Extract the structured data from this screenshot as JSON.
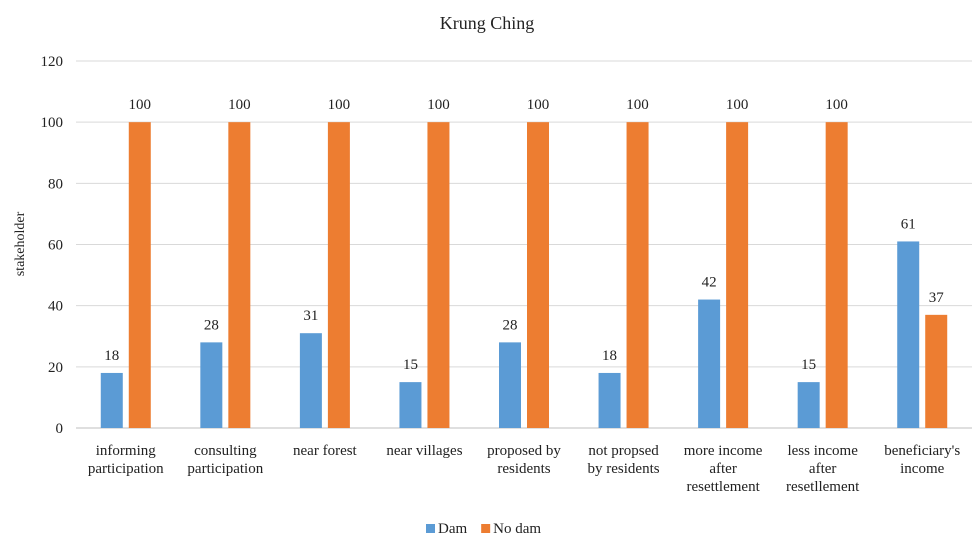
{
  "chart_data": {
    "type": "bar",
    "title": "Krung Ching",
    "xlabel": "",
    "ylabel": "stakeholder",
    "ylim": [
      0,
      120
    ],
    "yticks": [
      0,
      20,
      40,
      60,
      80,
      100,
      120
    ],
    "grid": true,
    "legend_position": "bottom",
    "categories": [
      [
        "informing",
        "participation"
      ],
      [
        "consulting",
        "participation"
      ],
      [
        "near forest"
      ],
      [
        "near villages"
      ],
      [
        "proposed by",
        "residents"
      ],
      [
        "not propsed",
        "by residents"
      ],
      [
        "more income",
        "after",
        "resettlement"
      ],
      [
        "less income",
        "after",
        "resetllement"
      ],
      [
        "beneficiary's",
        "income"
      ]
    ],
    "series": [
      {
        "name": "Dam",
        "color": "#5B9BD5",
        "values": [
          18,
          28,
          31,
          15,
          28,
          18,
          42,
          15,
          61
        ]
      },
      {
        "name": "No dam",
        "color": "#ED7D31",
        "values": [
          100,
          100,
          100,
          100,
          100,
          100,
          100,
          100,
          37
        ]
      }
    ]
  }
}
